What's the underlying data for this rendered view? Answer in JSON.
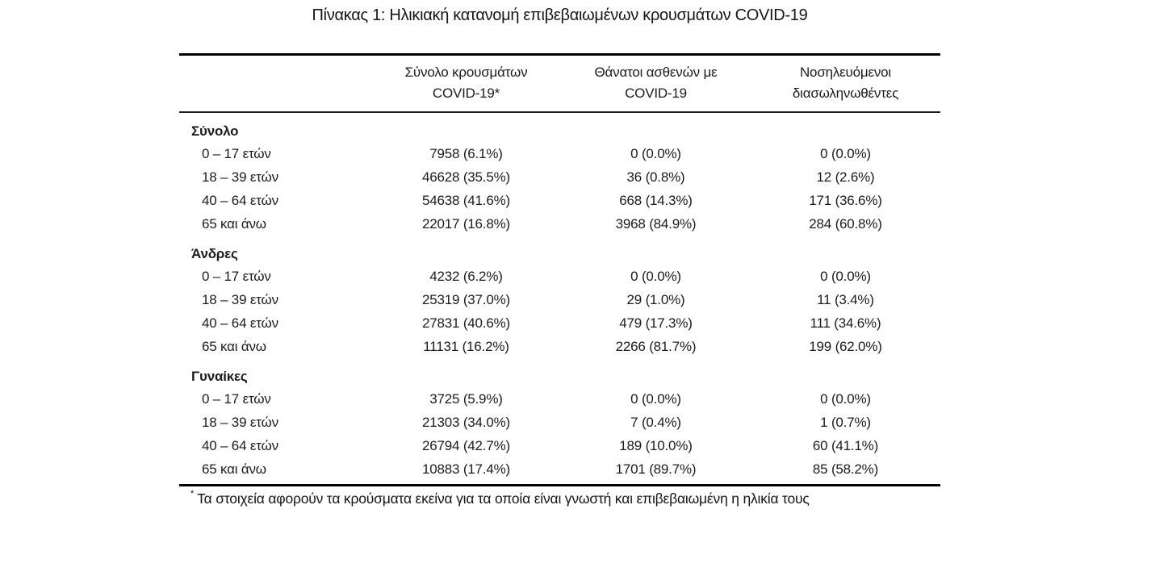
{
  "title": "Πίνακας 1: Ηλικιακή κατανομή επιβεβαιωμένων κρουσμάτων COVID-19",
  "table": {
    "columns": [
      {
        "line1": "Σύνολο κρουσμάτων",
        "line2": "COVID-19*"
      },
      {
        "line1": "Θάνατοι ασθενών με",
        "line2": "COVID-19"
      },
      {
        "line1": "Νοσηλευόμενοι",
        "line2": "διασωληνωθέντες"
      }
    ],
    "sections": [
      {
        "label": "Σύνολο",
        "rows": [
          {
            "age": "0 – 17 ετών",
            "cases": "7958 (6.1%)",
            "deaths": "0 (0.0%)",
            "intubated": "0 (0.0%)"
          },
          {
            "age": "18 – 39 ετών",
            "cases": "46628 (35.5%)",
            "deaths": "36 (0.8%)",
            "intubated": "12 (2.6%)"
          },
          {
            "age": "40 – 64 ετών",
            "cases": "54638 (41.6%)",
            "deaths": "668 (14.3%)",
            "intubated": "171 (36.6%)"
          },
          {
            "age": "65 και άνω",
            "cases": "22017 (16.8%)",
            "deaths": "3968 (84.9%)",
            "intubated": "284 (60.8%)"
          }
        ]
      },
      {
        "label": "Άνδρες",
        "rows": [
          {
            "age": "0 – 17 ετών",
            "cases": "4232 (6.2%)",
            "deaths": "0 (0.0%)",
            "intubated": "0 (0.0%)"
          },
          {
            "age": "18 – 39 ετών",
            "cases": "25319 (37.0%)",
            "deaths": "29 (1.0%)",
            "intubated": "11 (3.4%)"
          },
          {
            "age": "40 – 64 ετών",
            "cases": "27831 (40.6%)",
            "deaths": "479 (17.3%)",
            "intubated": "111 (34.6%)"
          },
          {
            "age": "65 και άνω",
            "cases": "11131 (16.2%)",
            "deaths": "2266 (81.7%)",
            "intubated": "199 (62.0%)"
          }
        ]
      },
      {
        "label": "Γυναίκες",
        "rows": [
          {
            "age": "0 – 17 ετών",
            "cases": "3725 (5.9%)",
            "deaths": "0 (0.0%)",
            "intubated": "0 (0.0%)"
          },
          {
            "age": "18 – 39 ετών",
            "cases": "21303 (34.0%)",
            "deaths": "7 (0.4%)",
            "intubated": "1 (0.7%)"
          },
          {
            "age": "40 – 64 ετών",
            "cases": "26794 (42.7%)",
            "deaths": "189 (10.0%)",
            "intubated": "60 (41.1%)"
          },
          {
            "age": "65 και άνω",
            "cases": "10883 (17.4%)",
            "deaths": "1701 (89.7%)",
            "intubated": "85 (58.2%)"
          }
        ]
      }
    ],
    "footnote_symbol": "*",
    "footnote": "Τα στοιχεία αφορούν τα κρούσματα εκείνα για τα οποία είναι γνωστή και επιβεβαιωμένη η ηλικία τους"
  }
}
